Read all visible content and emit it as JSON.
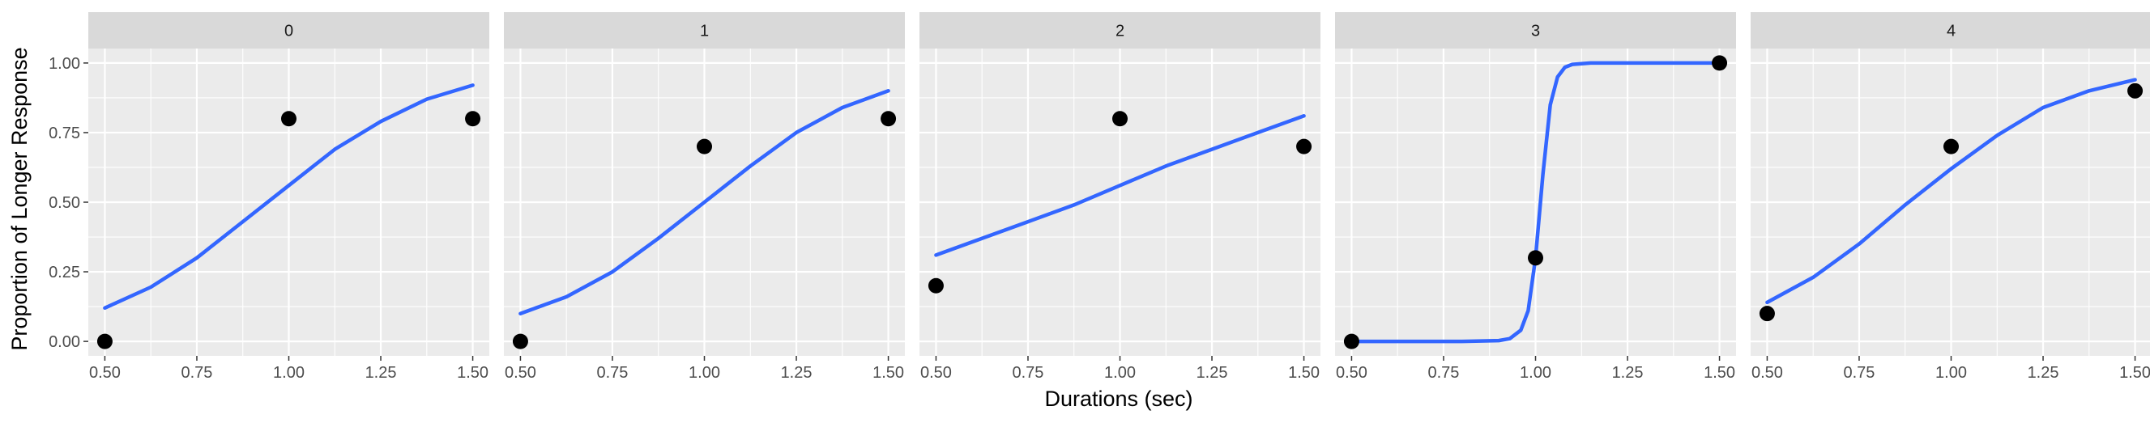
{
  "chart_data": {
    "type": "scatter",
    "xlabel": "Durations (sec)",
    "ylabel": "Proportion of Longer Response",
    "xlim": [
      0.5,
      1.5
    ],
    "ylim": [
      0,
      1
    ],
    "x_ticks": [
      0.5,
      0.75,
      1.0,
      1.25,
      1.5
    ],
    "x_tick_labels": [
      "0.50",
      "0.75",
      "1.00",
      "1.25",
      "1.50"
    ],
    "y_ticks": [
      0,
      0.25,
      0.5,
      0.75,
      1.0
    ],
    "y_tick_labels": [
      "0.00",
      "0.25",
      "0.50",
      "0.75",
      "1.00"
    ],
    "grid": true,
    "fit_color": "#3366FF",
    "point_color": "#000000",
    "panel_background": "#EBEBEB",
    "strip_background": "#D9D9D9",
    "panels": [
      {
        "label": "0",
        "points": [
          {
            "x": 0.5,
            "y": 0.0
          },
          {
            "x": 1.0,
            "y": 0.8
          },
          {
            "x": 1.5,
            "y": 0.8
          }
        ],
        "fit": {
          "x": [
            0.5,
            0.625,
            0.75,
            0.875,
            1.0,
            1.125,
            1.25,
            1.375,
            1.5
          ],
          "y": [
            0.12,
            0.195,
            0.3,
            0.43,
            0.56,
            0.69,
            0.79,
            0.87,
            0.92
          ]
        }
      },
      {
        "label": "1",
        "points": [
          {
            "x": 0.5,
            "y": 0.0
          },
          {
            "x": 1.0,
            "y": 0.7
          },
          {
            "x": 1.5,
            "y": 0.8
          }
        ],
        "fit": {
          "x": [
            0.5,
            0.625,
            0.75,
            0.875,
            1.0,
            1.125,
            1.25,
            1.375,
            1.5
          ],
          "y": [
            0.1,
            0.16,
            0.25,
            0.37,
            0.5,
            0.63,
            0.75,
            0.84,
            0.9
          ]
        }
      },
      {
        "label": "2",
        "points": [
          {
            "x": 0.5,
            "y": 0.2
          },
          {
            "x": 1.0,
            "y": 0.8
          },
          {
            "x": 1.5,
            "y": 0.7
          }
        ],
        "fit": {
          "x": [
            0.5,
            0.625,
            0.75,
            0.875,
            1.0,
            1.125,
            1.25,
            1.375,
            1.5
          ],
          "y": [
            0.31,
            0.37,
            0.43,
            0.49,
            0.56,
            0.63,
            0.69,
            0.75,
            0.81
          ]
        }
      },
      {
        "label": "3",
        "points": [
          {
            "x": 0.5,
            "y": 0.0
          },
          {
            "x": 1.0,
            "y": 0.3
          },
          {
            "x": 1.5,
            "y": 1.0
          }
        ],
        "fit": {
          "x": [
            0.5,
            0.8,
            0.9,
            0.93,
            0.96,
            0.98,
            1.0,
            1.02,
            1.04,
            1.06,
            1.08,
            1.1,
            1.15,
            1.2,
            1.5
          ],
          "y": [
            0.0,
            0.0,
            0.003,
            0.01,
            0.04,
            0.11,
            0.3,
            0.6,
            0.85,
            0.95,
            0.985,
            0.995,
            1.0,
            1.0,
            1.0
          ]
        }
      },
      {
        "label": "4",
        "points": [
          {
            "x": 0.5,
            "y": 0.1
          },
          {
            "x": 1.0,
            "y": 0.7
          },
          {
            "x": 1.5,
            "y": 0.9
          }
        ],
        "fit": {
          "x": [
            0.5,
            0.625,
            0.75,
            0.875,
            1.0,
            1.125,
            1.25,
            1.375,
            1.5
          ],
          "y": [
            0.14,
            0.23,
            0.35,
            0.49,
            0.62,
            0.74,
            0.84,
            0.9,
            0.94
          ]
        }
      }
    ]
  }
}
